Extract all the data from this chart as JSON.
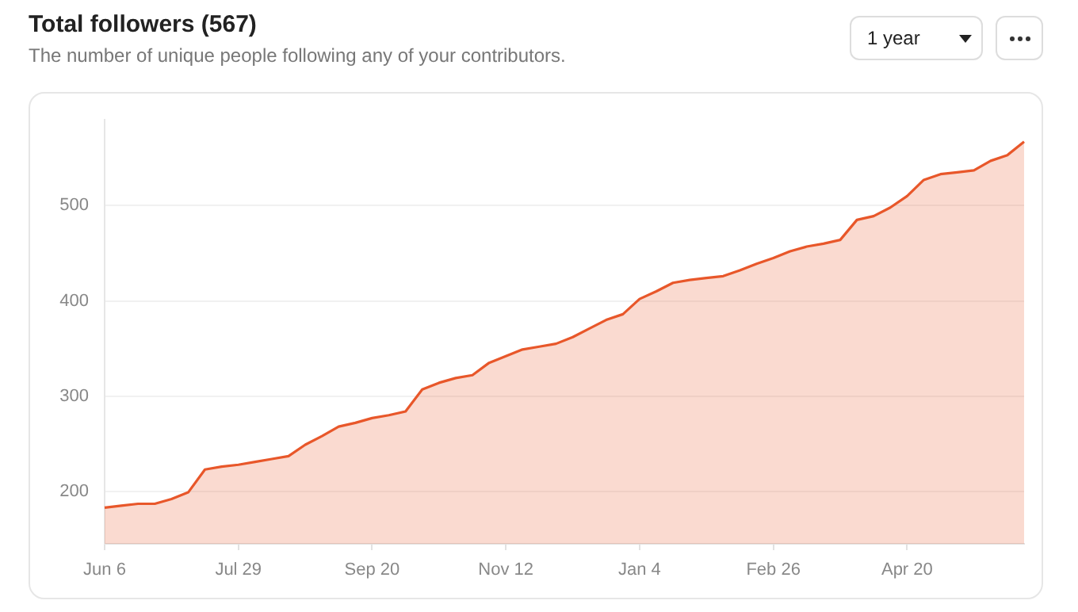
{
  "chart_data": {
    "type": "area",
    "title": "Total followers (567)",
    "subtitle": "The number of unique people following any of your contributors.",
    "annotations": [
      "1 year"
    ],
    "categories": [
      "Jun 6",
      null,
      null,
      null,
      null,
      null,
      null,
      null,
      "Jul 29",
      null,
      null,
      null,
      null,
      null,
      null,
      null,
      "Sep 20",
      null,
      null,
      null,
      null,
      null,
      null,
      null,
      "Nov 12",
      null,
      null,
      null,
      null,
      null,
      null,
      null,
      "Jan 4",
      null,
      null,
      null,
      null,
      null,
      null,
      null,
      "Feb 26",
      null,
      null,
      null,
      null,
      null,
      null,
      null,
      "Apr 20",
      null,
      null,
      null,
      null,
      null,
      null,
      null
    ],
    "series": [
      {
        "color": "#e8572a",
        "values": [
          183,
          185,
          187,
          187,
          192,
          199,
          223,
          226,
          228,
          231,
          234,
          237,
          249,
          258,
          268,
          272,
          277,
          280,
          284,
          307,
          314,
          319,
          322,
          335,
          342,
          349,
          352,
          355,
          362,
          371,
          380,
          386,
          402,
          410,
          419,
          422,
          424,
          426,
          432,
          439,
          445,
          452,
          457,
          460,
          464,
          485,
          489,
          498,
          510,
          527,
          533,
          535,
          537,
          547,
          553,
          567
        ]
      }
    ],
    "ylim": [
      145,
      590
    ],
    "yticks": [
      200,
      300,
      400,
      500
    ],
    "grid": "y",
    "legend": false,
    "marker": "none",
    "line_style": "solid"
  }
}
